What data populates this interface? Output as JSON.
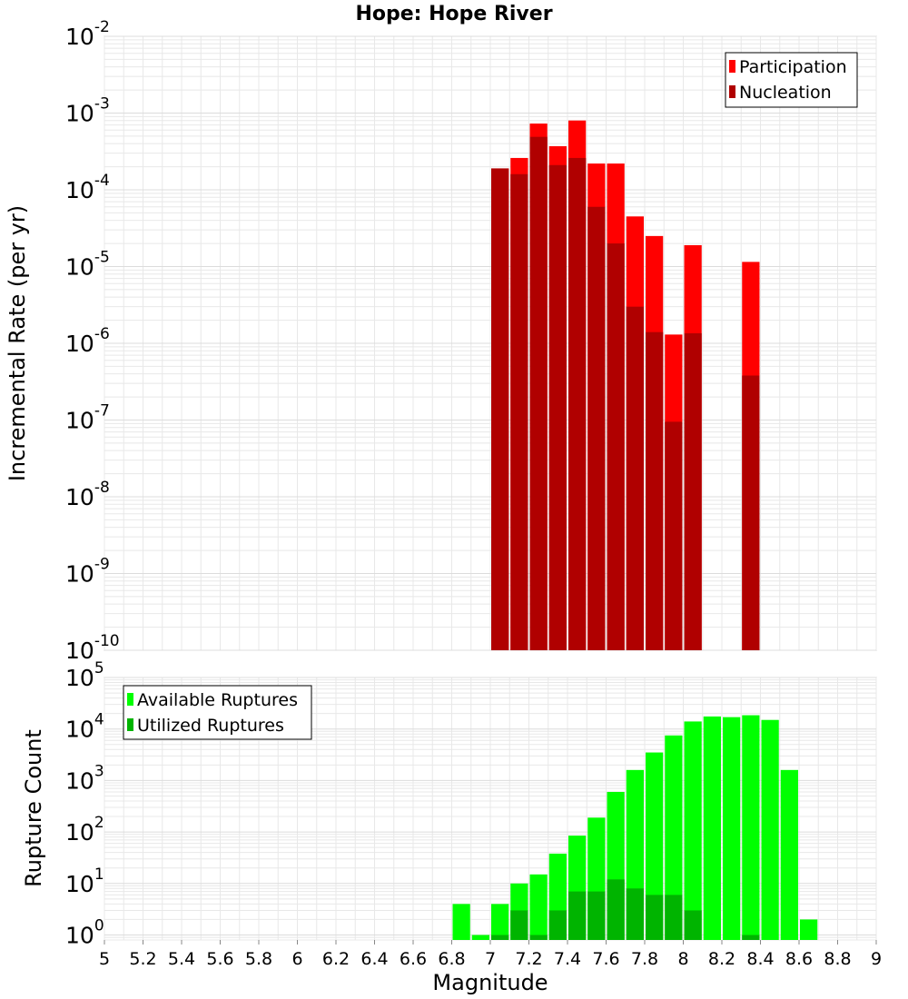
{
  "colors": {
    "participation": "#ff0000",
    "nucleation": "#b00000",
    "available": "#00ff00",
    "utilized": "#00b400",
    "grid": "#e8e8e8",
    "frame": "#bfbfbf"
  },
  "chart_data": [
    {
      "type": "bar",
      "title": "Hope: Hope River",
      "ylabel": "Incremental Rate (per yr)",
      "xlabel": "",
      "xlim": [
        5,
        9
      ],
      "ylim": [
        1e-10,
        0.01
      ],
      "yscale": "log",
      "bar_width": 0.1,
      "y_ticks": [
        {
          "base": "10",
          "exp": "-2"
        },
        {
          "base": "10",
          "exp": "-3"
        },
        {
          "base": "10",
          "exp": "-4"
        },
        {
          "base": "10",
          "exp": "-5"
        },
        {
          "base": "10",
          "exp": "-6"
        },
        {
          "base": "10",
          "exp": "-7"
        },
        {
          "base": "10",
          "exp": "-8"
        },
        {
          "base": "10",
          "exp": "-9"
        },
        {
          "base": "10",
          "exp": "-10"
        }
      ],
      "legend_position": "top-right",
      "grid": true,
      "series": [
        {
          "name": "Participation",
          "x": [
            7.05,
            7.15,
            7.25,
            7.35,
            7.45,
            7.55,
            7.65,
            7.75,
            7.85,
            7.95,
            8.05,
            8.35
          ],
          "values": [
            0.00019,
            0.00026,
            0.00073,
            0.00037,
            0.0008,
            0.00022,
            0.00022,
            4.5e-05,
            2.5e-05,
            1.3e-06,
            1.9e-05,
            1.15e-05
          ]
        },
        {
          "name": "Nucleation",
          "x": [
            7.05,
            7.15,
            7.25,
            7.35,
            7.45,
            7.55,
            7.65,
            7.75,
            7.85,
            7.95,
            8.05,
            8.35
          ],
          "values": [
            0.00019,
            0.00016,
            0.00049,
            0.00021,
            0.00026,
            6e-05,
            2e-05,
            3e-06,
            1.4e-06,
            9.5e-08,
            1.35e-06,
            3.8e-07
          ]
        }
      ]
    },
    {
      "type": "bar",
      "title": "",
      "ylabel": "Rupture Count",
      "xlabel": "Magnitude",
      "xlim": [
        5,
        9
      ],
      "ylim": [
        0.8,
        100000
      ],
      "yscale": "log",
      "bar_width": 0.1,
      "x_ticks": [
        "5",
        "5.2",
        "5.4",
        "5.6",
        "5.8",
        "6",
        "6.2",
        "6.4",
        "6.6",
        "6.8",
        "7",
        "7.2",
        "7.4",
        "7.6",
        "7.8",
        "8",
        "8.2",
        "8.4",
        "8.6",
        "8.8",
        "9"
      ],
      "y_ticks": [
        {
          "base": "10",
          "exp": "5"
        },
        {
          "base": "10",
          "exp": "4"
        },
        {
          "base": "10",
          "exp": "3"
        },
        {
          "base": "10",
          "exp": "2"
        },
        {
          "base": "10",
          "exp": "1"
        },
        {
          "base": "10",
          "exp": "0"
        }
      ],
      "legend_position": "top-left",
      "grid": true,
      "series": [
        {
          "name": "Available Ruptures",
          "x": [
            6.85,
            6.95,
            7.05,
            7.15,
            7.25,
            7.35,
            7.45,
            7.55,
            7.65,
            7.75,
            7.85,
            7.95,
            8.05,
            8.15,
            8.25,
            8.35,
            8.45,
            8.55,
            8.65
          ],
          "values": [
            4,
            1,
            4,
            10,
            15,
            38,
            85,
            190,
            600,
            1600,
            3500,
            7500,
            14000,
            17500,
            17000,
            18500,
            15000,
            1600,
            2
          ]
        },
        {
          "name": "Utilized Ruptures",
          "x": [
            7.05,
            7.15,
            7.25,
            7.35,
            7.45,
            7.55,
            7.65,
            7.75,
            7.85,
            7.95,
            8.05,
            8.35
          ],
          "values": [
            1,
            3,
            1,
            3,
            7,
            7,
            12,
            8,
            6,
            6,
            3,
            1
          ]
        }
      ]
    }
  ]
}
